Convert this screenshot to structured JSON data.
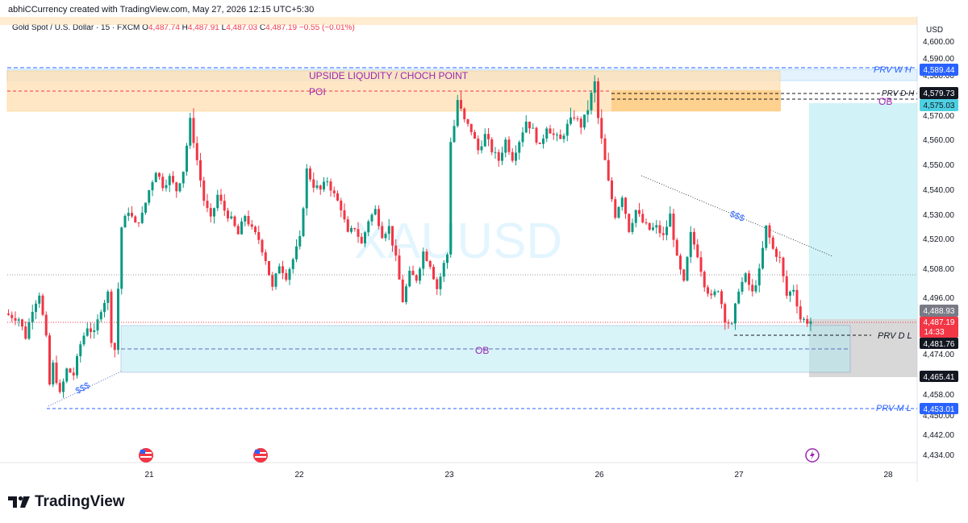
{
  "header": {
    "author_line": "abhiCCurrency created with TradingView.com, May 27, 2026 12:15 UTC+5:30"
  },
  "legend": {
    "symbol": "Gold Spot / U.S. Dollar · 15 · FXCM",
    "o_label": "O",
    "o_value": "4,487.74",
    "h_label": "H",
    "h_value": "4,487.91",
    "l_label": "L",
    "l_value": "4,487.03",
    "c_label": "C",
    "c_value": "4,487.19",
    "change": "−0.55 (−0.01%)"
  },
  "watermark": "XAUUSD",
  "currency_label": "USD",
  "colors": {
    "up": "#089981",
    "down": "#f23645",
    "poi_zone": "#ffe0b2",
    "ob_zone": "#b2ebf2",
    "blue_label": "#2962ff",
    "purple_text": "#9c27b0"
  },
  "annotations": {
    "poi_title": "UPSIDE LIQUDITY / CHOCH POINT",
    "poi": "POI",
    "ob_top": "OB",
    "ob_bottom": "OB",
    "sss_left": "$$$",
    "sss_right": "$$$",
    "prv_w_h": "PRV W H",
    "prv_d_h": "PRV D H",
    "prv_d_l": "PRV D L",
    "prv_m_l": "PRV M L"
  },
  "price_labels": {
    "prv_w_h": "4,589.44",
    "prv_d_h": "4,579.73",
    "ob_top": "4,575.03",
    "last_high": "4,488.93",
    "current": "4,487.19",
    "countdown": "14:33",
    "prv_d_l": "4,481.76",
    "ob_low": "4,465.41",
    "prv_m_l": "4,453.01"
  },
  "footer": {
    "brand": "TradingView"
  },
  "chart_data": {
    "type": "candlestick",
    "title": "Gold Spot / U.S. Dollar · 15 · FXCM",
    "y_ticks": [
      "4,600.00",
      "4,590.00",
      "4,580.00",
      "4,570.00",
      "4,560.00",
      "4,550.00",
      "4,540.00",
      "4,530.00",
      "4,520.00",
      "4,508.00",
      "4,496.00",
      "4,474.00",
      "4,458.00",
      "4,450.00",
      "4,442.00",
      "4,434.00"
    ],
    "x_ticks": [
      "21",
      "22",
      "23",
      "26",
      "27",
      "28"
    ],
    "ylim": [
      4430,
      4605
    ],
    "grid": false,
    "price_path": [
      [
        0,
        4490
      ],
      [
        4,
        4488
      ],
      [
        6,
        4481
      ],
      [
        8,
        4492
      ],
      [
        10,
        4498
      ],
      [
        12,
        4480
      ],
      [
        13,
        4462
      ],
      [
        14,
        4470
      ],
      [
        16,
        4458
      ],
      [
        18,
        4468
      ],
      [
        20,
        4466
      ],
      [
        22,
        4478
      ],
      [
        24,
        4485
      ],
      [
        26,
        4482
      ],
      [
        28,
        4492
      ],
      [
        30,
        4498
      ],
      [
        31,
        4480
      ],
      [
        32,
        4476
      ],
      [
        33,
        4500
      ],
      [
        34,
        4525
      ],
      [
        36,
        4532
      ],
      [
        38,
        4526
      ],
      [
        40,
        4530
      ],
      [
        42,
        4540
      ],
      [
        44,
        4548
      ],
      [
        46,
        4542
      ],
      [
        48,
        4545
      ],
      [
        50,
        4540
      ],
      [
        52,
        4548
      ],
      [
        54,
        4568
      ],
      [
        56,
        4552
      ],
      [
        58,
        4536
      ],
      [
        60,
        4528
      ],
      [
        62,
        4538
      ],
      [
        64,
        4532
      ],
      [
        66,
        4528
      ],
      [
        68,
        4522
      ],
      [
        70,
        4530
      ],
      [
        72,
        4524
      ],
      [
        74,
        4520
      ],
      [
        76,
        4512
      ],
      [
        78,
        4500
      ],
      [
        80,
        4510
      ],
      [
        82,
        4505
      ],
      [
        84,
        4512
      ],
      [
        86,
        4520
      ],
      [
        88,
        4548
      ],
      [
        90,
        4542
      ],
      [
        92,
        4540
      ],
      [
        94,
        4544
      ],
      [
        96,
        4538
      ],
      [
        98,
        4533
      ],
      [
        100,
        4522
      ],
      [
        102,
        4525
      ],
      [
        104,
        4518
      ],
      [
        106,
        4528
      ],
      [
        108,
        4532
      ],
      [
        110,
        4522
      ],
      [
        112,
        4525
      ],
      [
        114,
        4512
      ],
      [
        116,
        4495
      ],
      [
        118,
        4506
      ],
      [
        120,
        4504
      ],
      [
        122,
        4515
      ],
      [
        124,
        4510
      ],
      [
        126,
        4500
      ],
      [
        128,
        4510
      ],
      [
        129,
        4514
      ],
      [
        130,
        4560
      ],
      [
        131,
        4566
      ],
      [
        132,
        4574
      ],
      [
        134,
        4568
      ],
      [
        136,
        4564
      ],
      [
        138,
        4556
      ],
      [
        140,
        4562
      ],
      [
        142,
        4556
      ],
      [
        144,
        4552
      ],
      [
        146,
        4560
      ],
      [
        148,
        4553
      ],
      [
        150,
        4560
      ],
      [
        152,
        4568
      ],
      [
        154,
        4564
      ],
      [
        156,
        4557
      ],
      [
        158,
        4566
      ],
      [
        160,
        4562
      ],
      [
        162,
        4560
      ],
      [
        164,
        4566
      ],
      [
        166,
        4570
      ],
      [
        168,
        4566
      ],
      [
        170,
        4572
      ],
      [
        172,
        4578
      ],
      [
        174,
        4560
      ],
      [
        176,
        4543
      ],
      [
        178,
        4530
      ],
      [
        180,
        4538
      ],
      [
        182,
        4524
      ],
      [
        184,
        4532
      ],
      [
        186,
        4527
      ],
      [
        188,
        4524
      ],
      [
        190,
        4525
      ],
      [
        192,
        4521
      ],
      [
        194,
        4530
      ],
      [
        196,
        4512
      ],
      [
        198,
        4502
      ],
      [
        200,
        4522
      ],
      [
        202,
        4514
      ],
      [
        204,
        4502
      ],
      [
        206,
        4496
      ],
      [
        208,
        4500
      ],
      [
        210,
        4488
      ],
      [
        212,
        4485
      ],
      [
        214,
        4500
      ],
      [
        216,
        4505
      ],
      [
        218,
        4498
      ],
      [
        220,
        4507
      ],
      [
        222,
        4525
      ],
      [
        224,
        4516
      ],
      [
        226,
        4512
      ],
      [
        228,
        4497
      ],
      [
        230,
        4500
      ],
      [
        232,
        4488
      ],
      [
        234,
        4487
      ]
    ]
  }
}
